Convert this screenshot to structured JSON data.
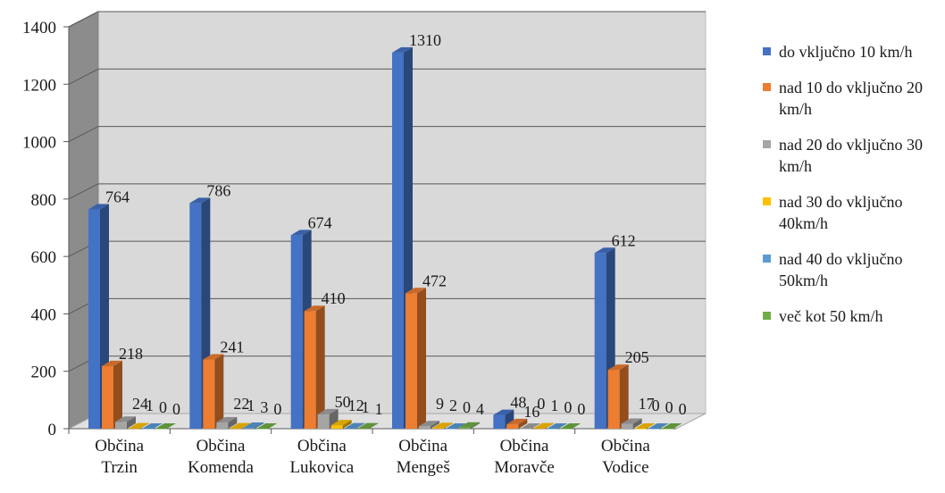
{
  "chart_data": {
    "type": "bar",
    "categories": [
      [
        "Občina",
        "Trzin"
      ],
      [
        "Občina",
        "Komenda"
      ],
      [
        "Občina",
        "Lukovica"
      ],
      [
        "Občina",
        "Mengeš"
      ],
      [
        "Občina",
        "Moravče"
      ],
      [
        "Občina",
        "Vodice"
      ]
    ],
    "series": [
      {
        "name": "do vključno 10 km/h",
        "color": "#4472c4",
        "values": [
          764,
          786,
          674,
          1310,
          48,
          612
        ]
      },
      {
        "name": "nad 10 do vključno 20 km/h",
        "color": "#ed7d31",
        "values": [
          218,
          241,
          410,
          472,
          16,
          205
        ]
      },
      {
        "name": "nad 20 do vključno 30 km/h",
        "color": "#a5a5a5",
        "values": [
          24,
          22,
          50,
          9,
          0,
          17
        ]
      },
      {
        "name": "nad 30 do vključno 40km/h",
        "color": "#ffc000",
        "values": [
          1,
          1,
          12,
          2,
          1,
          0
        ]
      },
      {
        "name": "nad 40 do vključno 50km/h",
        "color": "#5b9bd5",
        "values": [
          0,
          3,
          1,
          0,
          0,
          0
        ]
      },
      {
        "name": "več kot 50 km/h",
        "color": "#70ad47",
        "values": [
          0,
          0,
          1,
          4,
          0,
          0
        ]
      }
    ],
    "yticks": [
      "0",
      "200",
      "400",
      "600",
      "800",
      "1000",
      "1200",
      "1400"
    ],
    "ylim": [
      0,
      1400
    ],
    "grid": true,
    "legend_position": "right",
    "title": "",
    "xlabel": "",
    "ylabel": ""
  }
}
